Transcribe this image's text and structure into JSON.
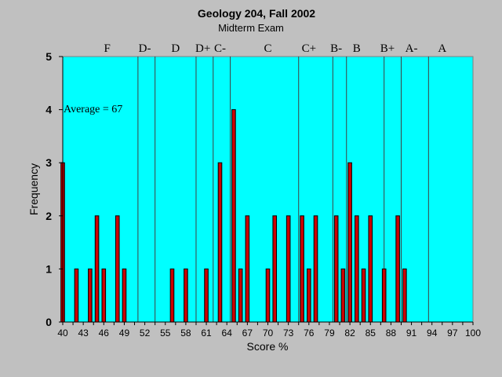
{
  "chart_data": {
    "type": "bar",
    "title": "Geology 204, Fall 2002",
    "subtitle": "Midterm Exam",
    "xlabel": "Score %",
    "ylabel": "Frequency",
    "xlim": [
      40,
      100
    ],
    "ylim": [
      0,
      5
    ],
    "x_ticks": [
      40,
      43,
      46,
      49,
      52,
      55,
      58,
      61,
      64,
      67,
      70,
      73,
      76,
      79,
      82,
      85,
      88,
      91,
      94,
      97,
      100
    ],
    "y_ticks": [
      0,
      1,
      2,
      3,
      4,
      5
    ],
    "grid": false,
    "annotation": "Average = 67",
    "colors": {
      "plot_bg": "#00ffff",
      "page_bg": "#c0c0c0",
      "bar": "#cc0000"
    },
    "grade_boundaries": [
      51,
      53.5,
      59.5,
      62,
      64.5,
      74.5,
      79.5,
      81.5,
      87,
      89.5,
      93.5
    ],
    "grade_labels": [
      {
        "label": "F",
        "x": 46.5
      },
      {
        "label": "D-",
        "x": 52
      },
      {
        "label": "D",
        "x": 56.5
      },
      {
        "label": "D+",
        "x": 60.5
      },
      {
        "label": "C-",
        "x": 63
      },
      {
        "label": "C",
        "x": 70
      },
      {
        "label": "C+",
        "x": 76
      },
      {
        "label": "B-",
        "x": 80
      },
      {
        "label": "B",
        "x": 83
      },
      {
        "label": "B+",
        "x": 87.5
      },
      {
        "label": "A-",
        "x": 91
      },
      {
        "label": "A",
        "x": 95.5
      }
    ],
    "data": [
      {
        "x": 40,
        "y": 3
      },
      {
        "x": 42,
        "y": 1
      },
      {
        "x": 44,
        "y": 1
      },
      {
        "x": 45,
        "y": 2
      },
      {
        "x": 46,
        "y": 1
      },
      {
        "x": 48,
        "y": 2
      },
      {
        "x": 49,
        "y": 1
      },
      {
        "x": 56,
        "y": 1
      },
      {
        "x": 58,
        "y": 1
      },
      {
        "x": 61,
        "y": 1
      },
      {
        "x": 63,
        "y": 3
      },
      {
        "x": 65,
        "y": 4
      },
      {
        "x": 66,
        "y": 1
      },
      {
        "x": 67,
        "y": 2
      },
      {
        "x": 70,
        "y": 1
      },
      {
        "x": 71,
        "y": 2
      },
      {
        "x": 73,
        "y": 2
      },
      {
        "x": 75,
        "y": 2
      },
      {
        "x": 76,
        "y": 1
      },
      {
        "x": 77,
        "y": 2
      },
      {
        "x": 80,
        "y": 2
      },
      {
        "x": 81,
        "y": 1
      },
      {
        "x": 82,
        "y": 3
      },
      {
        "x": 83,
        "y": 2
      },
      {
        "x": 84,
        "y": 1
      },
      {
        "x": 85,
        "y": 2
      },
      {
        "x": 87,
        "y": 1
      },
      {
        "x": 89,
        "y": 2
      },
      {
        "x": 90,
        "y": 1
      }
    ]
  }
}
